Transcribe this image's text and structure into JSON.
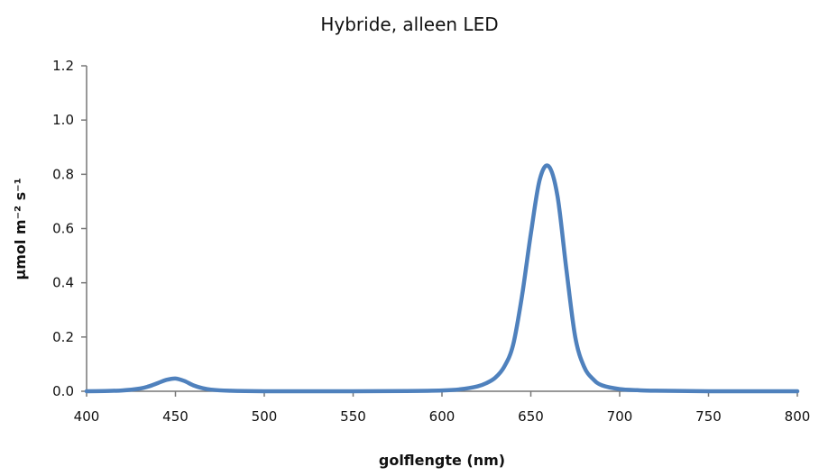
{
  "chart_data": {
    "type": "line",
    "title": "Hybride, alleen LED",
    "xlabel": "golflengte (nm)",
    "ylabel": "µmol m⁻² s⁻¹",
    "xlim": [
      400,
      800
    ],
    "ylim": [
      0,
      1.2
    ],
    "x_ticks": [
      "400",
      "450",
      "500",
      "550",
      "600",
      "650",
      "700",
      "750",
      "800"
    ],
    "y_ticks": [
      "0.0",
      "0.2",
      "0.4",
      "0.6",
      "0.8",
      "1.0",
      "1.2"
    ],
    "grid": false,
    "legend": "none",
    "series": [
      {
        "color": "#4F81BD",
        "x": [
          400,
          410,
          420,
          430,
          435,
          440,
          445,
          450,
          455,
          460,
          465,
          470,
          480,
          500,
          550,
          580,
          600,
          610,
          620,
          625,
          630,
          635,
          640,
          645,
          650,
          655,
          660,
          665,
          670,
          675,
          680,
          685,
          690,
          700,
          710,
          720,
          750,
          800
        ],
        "values": [
          0.0,
          0.001,
          0.003,
          0.01,
          0.018,
          0.03,
          0.042,
          0.047,
          0.038,
          0.022,
          0.012,
          0.006,
          0.002,
          0.0,
          0.0,
          0.001,
          0.003,
          0.007,
          0.018,
          0.03,
          0.05,
          0.09,
          0.17,
          0.35,
          0.58,
          0.78,
          0.83,
          0.72,
          0.45,
          0.2,
          0.09,
          0.045,
          0.022,
          0.008,
          0.004,
          0.002,
          0.0,
          0.0
        ]
      }
    ]
  }
}
